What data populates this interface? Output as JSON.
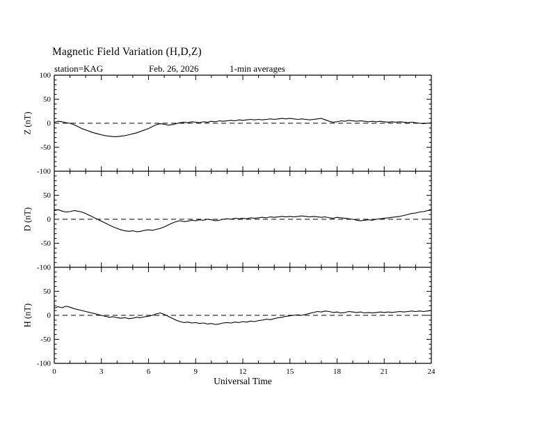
{
  "header": {
    "title": "Magnetic Field Variation (H,D,Z)",
    "station": "station=KAG",
    "date": "Feb. 26,  2026",
    "averaging": "1-min averages"
  },
  "chart_data": {
    "type": "line",
    "title": "Magnetic Field Variation (H,D,Z)",
    "xlabel": "Universal Time",
    "x_range": [
      0,
      24
    ],
    "x_ticks_major": [
      0,
      3,
      6,
      9,
      12,
      15,
      18,
      21,
      24
    ],
    "x_minor_step": 1,
    "panel_ylim": [
      -100,
      100
    ],
    "y_ticks_major": [
      -100,
      -50,
      0,
      50,
      100
    ],
    "y_minor_step": 10,
    "line_color": "#000000",
    "zero_line": "dashed",
    "legend": "none",
    "sampling": {
      "x_start": 0,
      "x_step": 0.25,
      "units": "hours UT"
    },
    "panels": [
      {
        "name": "Z",
        "ylabel": "Z (nT)",
        "values": [
          2,
          4,
          3,
          1,
          0,
          -3,
          -7,
          -11,
          -14,
          -17,
          -20,
          -22,
          -24,
          -26,
          -27,
          -28,
          -28,
          -27,
          -26,
          -24,
          -22,
          -20,
          -17,
          -14,
          -11,
          -7,
          -3,
          -1,
          -2,
          -4,
          -3,
          -1,
          1,
          2,
          1,
          3,
          2,
          1,
          3,
          2,
          4,
          3,
          5,
          4,
          5,
          6,
          5,
          7,
          6,
          7,
          8,
          7,
          8,
          7,
          8,
          9,
          8,
          9,
          10,
          9,
          10,
          9,
          8,
          9,
          8,
          7,
          8,
          9,
          10,
          7,
          4,
          2,
          3,
          5,
          4,
          6,
          5,
          4,
          5,
          4,
          3,
          4,
          3,
          4,
          3,
          2,
          3,
          2,
          3,
          2,
          1,
          2,
          1,
          0,
          -1,
          0,
          1
        ]
      },
      {
        "name": "D",
        "ylabel": "D (nT)",
        "values": [
          18,
          20,
          17,
          15,
          16,
          18,
          17,
          15,
          12,
          8,
          4,
          0,
          -4,
          -8,
          -12,
          -16,
          -19,
          -22,
          -24,
          -25,
          -24,
          -26,
          -25,
          -23,
          -22,
          -23,
          -21,
          -19,
          -16,
          -12,
          -8,
          -5,
          -3,
          -5,
          -4,
          -2,
          -3,
          -1,
          -2,
          0,
          -1,
          -3,
          -2,
          0,
          1,
          0,
          2,
          1,
          2,
          1,
          3,
          2,
          3,
          4,
          3,
          5,
          4,
          5,
          6,
          5,
          6,
          5,
          6,
          7,
          6,
          5,
          6,
          5,
          4,
          5,
          3,
          2,
          4,
          3,
          2,
          1,
          0,
          -2,
          -3,
          -2,
          -1,
          -2,
          0,
          1,
          2,
          3,
          4,
          5,
          6,
          8,
          10,
          12,
          13,
          15,
          16,
          18,
          19
        ]
      },
      {
        "name": "H",
        "ylabel": "H (nT)",
        "values": [
          15,
          18,
          16,
          19,
          17,
          14,
          12,
          10,
          8,
          6,
          4,
          2,
          0,
          -2,
          -4,
          -3,
          -5,
          -6,
          -5,
          -7,
          -6,
          -4,
          -5,
          -3,
          -2,
          0,
          3,
          5,
          2,
          -2,
          -6,
          -10,
          -13,
          -15,
          -14,
          -16,
          -15,
          -17,
          -16,
          -18,
          -17,
          -19,
          -18,
          -16,
          -15,
          -16,
          -14,
          -15,
          -13,
          -14,
          -12,
          -13,
          -11,
          -10,
          -8,
          -9,
          -7,
          -5,
          -4,
          -2,
          -1,
          0,
          1,
          0,
          2,
          4,
          6,
          8,
          7,
          9,
          8,
          6,
          7,
          5,
          6,
          8,
          7,
          6,
          7,
          5,
          6,
          5,
          6,
          7,
          6,
          7,
          6,
          7,
          8,
          7,
          8,
          9,
          8,
          9,
          8,
          9,
          10
        ]
      }
    ]
  }
}
